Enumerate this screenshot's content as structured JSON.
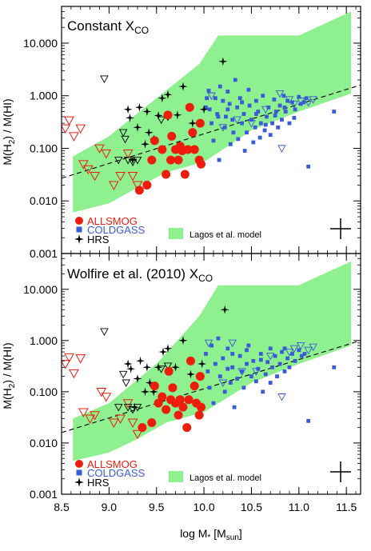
{
  "colors": {
    "model_band": "#8ef08e",
    "allsmog": "#ee1c0c",
    "coldgass": "#3a5bd9",
    "hrs": "#000000",
    "frame": "#000000"
  },
  "shared": {
    "xlabel_main": "log M",
    "xlabel_sub_star": "*",
    "xlabel_unit_open": " [M",
    "xlabel_unit_sub": "sun",
    "xlabel_unit_close": "]",
    "ylabel_prefix": "M(H",
    "ylabel_sub": "2",
    "ylabel_suffix": ") / M(HI)",
    "xticks": [
      8.5,
      9.0,
      9.5,
      10.0,
      10.5,
      11.0,
      11.5
    ],
    "xtick_labels": [
      "8.5",
      "9.0",
      "9.5",
      "10.0",
      "10.5",
      "11.0",
      "11.5"
    ],
    "yticks": [
      0.001,
      0.01,
      0.1,
      1,
      10
    ],
    "ytick_labels": [
      "0.001",
      "0.010",
      "0.100",
      "1.000",
      "10.000"
    ],
    "legend": {
      "allsmog": "ALLSMOG",
      "coldgass": "COLDGASS",
      "hrs": "HRS",
      "model": "Lagos et al. model"
    }
  },
  "chart_data": [
    {
      "type": "scatter",
      "title_main": "Constant X",
      "title_sub": "CO",
      "xlim": [
        8.5,
        11.65
      ],
      "ylim": [
        0.001,
        50
      ],
      "yscale": "log",
      "model_band": {
        "upper": [
          [
            8.62,
            0.07
          ],
          [
            9.0,
            0.17
          ],
          [
            9.5,
            0.9
          ],
          [
            9.95,
            4.0
          ],
          [
            10.15,
            14.0
          ],
          [
            11.0,
            14.0
          ],
          [
            11.55,
            40.0
          ]
        ],
        "lower": [
          [
            11.55,
            1.1
          ],
          [
            11.0,
            0.5
          ],
          [
            10.5,
            0.22
          ],
          [
            10.0,
            0.055
          ],
          [
            9.6,
            0.035
          ],
          [
            9.3,
            0.018
          ],
          [
            9.0,
            0.009
          ],
          [
            8.62,
            0.006
          ]
        ]
      },
      "fit_line": {
        "x": [
          8.5,
          11.65
        ],
        "y": [
          0.027,
          1.6
        ]
      },
      "allsmog": [
        [
          9.32,
          0.016
        ],
        [
          9.4,
          0.02
        ],
        [
          9.45,
          0.06
        ],
        [
          9.48,
          0.14
        ],
        [
          9.56,
          0.095
        ],
        [
          9.6,
          0.032
        ],
        [
          9.62,
          0.43
        ],
        [
          9.65,
          0.06
        ],
        [
          9.66,
          0.17
        ],
        [
          9.7,
          0.095
        ],
        [
          9.73,
          0.06
        ],
        [
          9.75,
          0.11
        ],
        [
          9.77,
          0.09
        ],
        [
          9.8,
          0.032
        ],
        [
          9.83,
          0.095
        ],
        [
          9.85,
          0.6
        ],
        [
          9.88,
          0.2
        ],
        [
          9.9,
          0.095
        ],
        [
          9.95,
          0.06
        ],
        [
          9.96,
          0.3
        ],
        [
          9.97,
          0.05
        ]
      ],
      "allsmog_limits": [
        [
          8.54,
          0.24
        ],
        [
          8.58,
          0.34
        ],
        [
          8.63,
          0.17
        ],
        [
          8.7,
          0.24
        ],
        [
          8.73,
          0.05
        ],
        [
          8.78,
          0.04
        ],
        [
          8.85,
          0.03
        ],
        [
          8.9,
          0.1
        ],
        [
          8.97,
          0.08
        ],
        [
          9.05,
          0.02
        ],
        [
          9.12,
          0.03
        ],
        [
          9.2,
          0.08
        ],
        [
          9.25,
          0.03
        ],
        [
          9.3,
          0.02
        ]
      ],
      "coldgass": [
        [
          10.02,
          0.6
        ],
        [
          10.03,
          0.9
        ],
        [
          10.05,
          1.25
        ],
        [
          10.06,
          0.55
        ],
        [
          10.08,
          0.3
        ],
        [
          10.1,
          0.14
        ],
        [
          10.12,
          0.9
        ],
        [
          10.14,
          0.45
        ],
        [
          10.16,
          0.06
        ],
        [
          10.17,
          1.5
        ],
        [
          10.2,
          0.8
        ],
        [
          10.22,
          0.25
        ],
        [
          10.23,
          0.4
        ],
        [
          10.25,
          1.2
        ],
        [
          10.27,
          0.7
        ],
        [
          10.28,
          0.12
        ],
        [
          10.3,
          0.35
        ],
        [
          10.31,
          0.2
        ],
        [
          10.33,
          2.0
        ],
        [
          10.35,
          0.6
        ],
        [
          10.36,
          0.15
        ],
        [
          10.38,
          0.9
        ],
        [
          10.4,
          0.3
        ],
        [
          10.42,
          0.45
        ],
        [
          10.43,
          0.09
        ],
        [
          10.45,
          0.2
        ],
        [
          10.47,
          1.3
        ],
        [
          10.48,
          0.65
        ],
        [
          10.5,
          0.35
        ],
        [
          10.52,
          0.13
        ],
        [
          10.54,
          0.25
        ],
        [
          10.55,
          0.8
        ],
        [
          10.57,
          0.5
        ],
        [
          10.59,
          0.16
        ],
        [
          10.6,
          0.3
        ],
        [
          10.62,
          1.0
        ],
        [
          10.64,
          0.22
        ],
        [
          10.66,
          0.4
        ],
        [
          10.68,
          0.6
        ],
        [
          10.7,
          0.18
        ],
        [
          10.72,
          0.3
        ],
        [
          10.74,
          0.85
        ],
        [
          10.76,
          0.5
        ],
        [
          10.78,
          0.25
        ],
        [
          10.8,
          0.65
        ],
        [
          10.82,
          0.35
        ],
        [
          10.84,
          1.0
        ],
        [
          10.86,
          0.5
        ],
        [
          10.88,
          0.8
        ],
        [
          10.9,
          0.3
        ],
        [
          10.93,
          0.75
        ],
        [
          10.96,
          0.55
        ],
        [
          11.0,
          0.95
        ],
        [
          11.02,
          0.7
        ],
        [
          11.05,
          0.75
        ],
        [
          11.08,
          0.9
        ],
        [
          11.1,
          0.045
        ],
        [
          11.37,
          0.5
        ],
        [
          10.15,
          0.4
        ],
        [
          10.25,
          0.55
        ],
        [
          10.4,
          0.75
        ],
        [
          10.55,
          0.45
        ],
        [
          10.65,
          0.28
        ],
        [
          10.75,
          0.42
        ],
        [
          10.85,
          0.6
        ],
        [
          10.95,
          0.38
        ]
      ],
      "coldgass_limits": [
        [
          10.08,
          1.0
        ],
        [
          10.2,
          0.25
        ],
        [
          10.35,
          0.35
        ],
        [
          10.5,
          0.3
        ],
        [
          10.65,
          0.55
        ],
        [
          10.8,
          1.1
        ],
        [
          10.82,
          0.1
        ],
        [
          10.9,
          0.85
        ],
        [
          10.95,
          0.7
        ],
        [
          11.02,
          0.8
        ],
        [
          11.1,
          0.75
        ],
        [
          11.15,
          0.85
        ]
      ],
      "hrs": [
        [
          9.2,
          0.55
        ],
        [
          9.22,
          0.38
        ],
        [
          9.25,
          0.06
        ],
        [
          9.3,
          0.25
        ],
        [
          9.32,
          0.6
        ],
        [
          9.38,
          0.12
        ],
        [
          9.4,
          0.5
        ],
        [
          9.42,
          0.2
        ],
        [
          9.47,
          0.15
        ],
        [
          9.52,
          0.42
        ],
        [
          9.56,
          0.9
        ],
        [
          9.62,
          1.05
        ],
        [
          9.72,
          0.43
        ],
        [
          9.78,
          1.5
        ],
        [
          9.88,
          0.3
        ],
        [
          10.0,
          0.55
        ],
        [
          10.2,
          4.5
        ]
      ],
      "hrs_limits": [
        [
          8.95,
          2.1
        ],
        [
          9.1,
          0.06
        ],
        [
          9.15,
          0.2
        ],
        [
          9.17,
          0.15
        ],
        [
          9.2,
          0.06
        ],
        [
          9.25,
          0.055
        ],
        [
          9.3,
          0.06
        ],
        [
          9.55,
          0.35
        ],
        [
          9.62,
          0.4
        ]
      ]
    },
    {
      "type": "scatter",
      "title_main": "Wolfire et al. (2010) X",
      "title_sub": "CO",
      "xlim": [
        8.5,
        11.65
      ],
      "ylim": [
        0.001,
        50
      ],
      "yscale": "log",
      "model_band": {
        "upper": [
          [
            8.62,
            0.03
          ],
          [
            9.0,
            0.06
          ],
          [
            9.5,
            0.35
          ],
          [
            9.95,
            3.0
          ],
          [
            10.15,
            12.0
          ],
          [
            11.0,
            12.0
          ],
          [
            11.55,
            35.0
          ]
        ],
        "lower": [
          [
            11.55,
            0.8
          ],
          [
            11.0,
            0.35
          ],
          [
            10.5,
            0.15
          ],
          [
            10.0,
            0.04
          ],
          [
            9.6,
            0.025
          ],
          [
            9.3,
            0.012
          ],
          [
            9.0,
            0.0065
          ],
          [
            8.62,
            0.0045
          ]
        ]
      },
      "fit_line": {
        "x": [
          8.5,
          11.65
        ],
        "y": [
          0.016,
          1.0
        ]
      },
      "allsmog": [
        [
          9.35,
          0.02
        ],
        [
          9.45,
          0.025
        ],
        [
          9.48,
          0.13
        ],
        [
          9.52,
          0.06
        ],
        [
          9.56,
          0.08
        ],
        [
          9.6,
          0.045
        ],
        [
          9.63,
          0.25
        ],
        [
          9.65,
          0.07
        ],
        [
          9.67,
          0.12
        ],
        [
          9.7,
          0.06
        ],
        [
          9.73,
          0.035
        ],
        [
          9.75,
          0.07
        ],
        [
          9.78,
          0.05
        ],
        [
          9.82,
          0.02
        ],
        [
          9.84,
          0.07
        ],
        [
          9.86,
          0.4
        ],
        [
          9.9,
          0.13
        ],
        [
          9.92,
          0.06
        ],
        [
          9.95,
          0.035
        ],
        [
          9.96,
          0.2
        ],
        [
          9.97,
          0.05
        ]
      ],
      "allsmog_limits": [
        [
          8.54,
          0.35
        ],
        [
          8.58,
          0.47
        ],
        [
          8.63,
          0.23
        ],
        [
          8.7,
          0.45
        ],
        [
          8.73,
          0.04
        ],
        [
          8.8,
          0.03
        ],
        [
          8.85,
          0.035
        ],
        [
          8.92,
          0.1
        ],
        [
          8.97,
          0.08
        ],
        [
          9.05,
          0.025
        ],
        [
          9.12,
          0.03
        ],
        [
          9.2,
          0.06
        ],
        [
          9.25,
          0.025
        ],
        [
          9.3,
          0.015
        ]
      ],
      "coldgass": [
        [
          10.02,
          0.55
        ],
        [
          10.04,
          0.25
        ],
        [
          10.06,
          0.12
        ],
        [
          10.08,
          0.8
        ],
        [
          10.1,
          0.06
        ],
        [
          10.12,
          0.35
        ],
        [
          10.15,
          1.1
        ],
        [
          10.17,
          0.2
        ],
        [
          10.2,
          0.45
        ],
        [
          10.22,
          0.1
        ],
        [
          10.25,
          0.7
        ],
        [
          10.28,
          0.15
        ],
        [
          10.3,
          0.3
        ],
        [
          10.32,
          0.05
        ],
        [
          10.35,
          0.18
        ],
        [
          10.38,
          0.5
        ],
        [
          10.4,
          0.25
        ],
        [
          10.42,
          0.12
        ],
        [
          10.45,
          0.35
        ],
        [
          10.47,
          0.8
        ],
        [
          10.5,
          0.2
        ],
        [
          10.52,
          0.4
        ],
        [
          10.55,
          0.16
        ],
        [
          10.57,
          0.28
        ],
        [
          10.6,
          0.55
        ],
        [
          10.62,
          0.1
        ],
        [
          10.65,
          0.22
        ],
        [
          10.67,
          0.38
        ],
        [
          10.7,
          0.15
        ],
        [
          10.72,
          0.3
        ],
        [
          10.75,
          0.5
        ],
        [
          10.77,
          0.2
        ],
        [
          10.8,
          0.35
        ],
        [
          10.82,
          0.6
        ],
        [
          10.85,
          0.25
        ],
        [
          10.88,
          0.45
        ],
        [
          10.9,
          0.3
        ],
        [
          10.93,
          0.55
        ],
        [
          10.96,
          0.4
        ],
        [
          11.0,
          0.65
        ],
        [
          11.03,
          0.5
        ],
        [
          11.06,
          0.55
        ],
        [
          11.1,
          0.027
        ],
        [
          11.37,
          0.3
        ],
        [
          10.3,
          0.55
        ],
        [
          10.45,
          0.65
        ],
        [
          10.6,
          0.42
        ],
        [
          10.7,
          0.7
        ],
        [
          10.85,
          0.7
        ],
        [
          10.25,
          0.28
        ]
      ],
      "coldgass_limits": [
        [
          10.05,
          0.9
        ],
        [
          10.2,
          0.15
        ],
        [
          10.4,
          0.25
        ],
        [
          10.55,
          0.25
        ],
        [
          10.7,
          0.5
        ],
        [
          10.82,
          0.08
        ],
        [
          10.9,
          0.6
        ],
        [
          10.95,
          0.7
        ],
        [
          11.02,
          0.8
        ],
        [
          11.1,
          0.65
        ],
        [
          11.15,
          0.75
        ],
        [
          10.3,
          0.9
        ]
      ],
      "hrs": [
        [
          9.2,
          0.35
        ],
        [
          9.23,
          0.28
        ],
        [
          9.27,
          0.05
        ],
        [
          9.3,
          0.18
        ],
        [
          9.33,
          0.4
        ],
        [
          9.38,
          0.1
        ],
        [
          9.4,
          0.3
        ],
        [
          9.43,
          0.15
        ],
        [
          9.47,
          0.1
        ],
        [
          9.52,
          0.3
        ],
        [
          9.57,
          0.6
        ],
        [
          9.62,
          0.7
        ],
        [
          9.7,
          0.3
        ],
        [
          9.78,
          1.0
        ],
        [
          9.86,
          0.22
        ],
        [
          9.98,
          0.35
        ],
        [
          10.22,
          4.0
        ]
      ],
      "hrs_limits": [
        [
          8.95,
          1.5
        ],
        [
          9.1,
          0.05
        ],
        [
          9.15,
          0.22
        ],
        [
          9.18,
          0.15
        ],
        [
          9.2,
          0.05
        ],
        [
          9.25,
          0.045
        ],
        [
          9.3,
          0.05
        ],
        [
          9.55,
          0.28
        ],
        [
          9.62,
          0.32
        ]
      ]
    }
  ]
}
